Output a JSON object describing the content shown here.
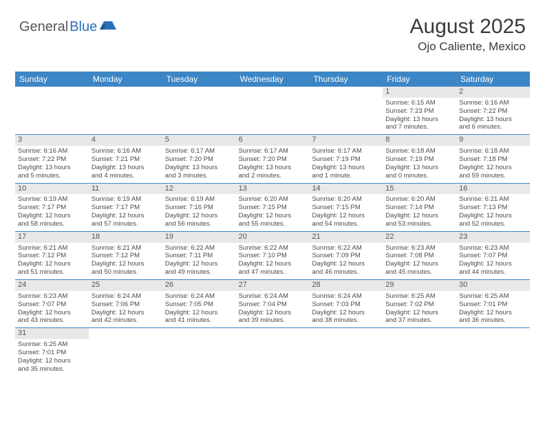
{
  "brand": {
    "first": "General",
    "second": "Blue",
    "accent_color": "#2970b8"
  },
  "title": {
    "month": "August 2025",
    "location": "Ojo Caliente, Mexico",
    "font_size_month": 30,
    "font_size_location": 17
  },
  "colors": {
    "header_bg": "#3d86c6",
    "header_text": "#ffffff",
    "daynum_bg": "#e8e8e8",
    "row_border": "#3d86c6",
    "body_text": "#4a4a4a",
    "page_bg": "#ffffff"
  },
  "day_names": [
    "Sunday",
    "Monday",
    "Tuesday",
    "Wednesday",
    "Thursday",
    "Friday",
    "Saturday"
  ],
  "weeks": [
    [
      null,
      null,
      null,
      null,
      null,
      {
        "n": "1",
        "sr": "Sunrise: 6:15 AM",
        "ss": "Sunset: 7:23 PM",
        "d1": "Daylight: 13 hours",
        "d2": "and 7 minutes."
      },
      {
        "n": "2",
        "sr": "Sunrise: 6:16 AM",
        "ss": "Sunset: 7:22 PM",
        "d1": "Daylight: 13 hours",
        "d2": "and 6 minutes."
      }
    ],
    [
      {
        "n": "3",
        "sr": "Sunrise: 6:16 AM",
        "ss": "Sunset: 7:22 PM",
        "d1": "Daylight: 13 hours",
        "d2": "and 5 minutes."
      },
      {
        "n": "4",
        "sr": "Sunrise: 6:16 AM",
        "ss": "Sunset: 7:21 PM",
        "d1": "Daylight: 13 hours",
        "d2": "and 4 minutes."
      },
      {
        "n": "5",
        "sr": "Sunrise: 6:17 AM",
        "ss": "Sunset: 7:20 PM",
        "d1": "Daylight: 13 hours",
        "d2": "and 3 minutes."
      },
      {
        "n": "6",
        "sr": "Sunrise: 6:17 AM",
        "ss": "Sunset: 7:20 PM",
        "d1": "Daylight: 13 hours",
        "d2": "and 2 minutes."
      },
      {
        "n": "7",
        "sr": "Sunrise: 6:17 AM",
        "ss": "Sunset: 7:19 PM",
        "d1": "Daylight: 13 hours",
        "d2": "and 1 minute."
      },
      {
        "n": "8",
        "sr": "Sunrise: 6:18 AM",
        "ss": "Sunset: 7:19 PM",
        "d1": "Daylight: 13 hours",
        "d2": "and 0 minutes."
      },
      {
        "n": "9",
        "sr": "Sunrise: 6:18 AM",
        "ss": "Sunset: 7:18 PM",
        "d1": "Daylight: 12 hours",
        "d2": "and 59 minutes."
      }
    ],
    [
      {
        "n": "10",
        "sr": "Sunrise: 6:19 AM",
        "ss": "Sunset: 7:17 PM",
        "d1": "Daylight: 12 hours",
        "d2": "and 58 minutes."
      },
      {
        "n": "11",
        "sr": "Sunrise: 6:19 AM",
        "ss": "Sunset: 7:17 PM",
        "d1": "Daylight: 12 hours",
        "d2": "and 57 minutes."
      },
      {
        "n": "12",
        "sr": "Sunrise: 6:19 AM",
        "ss": "Sunset: 7:16 PM",
        "d1": "Daylight: 12 hours",
        "d2": "and 56 minutes."
      },
      {
        "n": "13",
        "sr": "Sunrise: 6:20 AM",
        "ss": "Sunset: 7:15 PM",
        "d1": "Daylight: 12 hours",
        "d2": "and 55 minutes."
      },
      {
        "n": "14",
        "sr": "Sunrise: 6:20 AM",
        "ss": "Sunset: 7:15 PM",
        "d1": "Daylight: 12 hours",
        "d2": "and 54 minutes."
      },
      {
        "n": "15",
        "sr": "Sunrise: 6:20 AM",
        "ss": "Sunset: 7:14 PM",
        "d1": "Daylight: 12 hours",
        "d2": "and 53 minutes."
      },
      {
        "n": "16",
        "sr": "Sunrise: 6:21 AM",
        "ss": "Sunset: 7:13 PM",
        "d1": "Daylight: 12 hours",
        "d2": "and 52 minutes."
      }
    ],
    [
      {
        "n": "17",
        "sr": "Sunrise: 6:21 AM",
        "ss": "Sunset: 7:12 PM",
        "d1": "Daylight: 12 hours",
        "d2": "and 51 minutes."
      },
      {
        "n": "18",
        "sr": "Sunrise: 6:21 AM",
        "ss": "Sunset: 7:12 PM",
        "d1": "Daylight: 12 hours",
        "d2": "and 50 minutes."
      },
      {
        "n": "19",
        "sr": "Sunrise: 6:22 AM",
        "ss": "Sunset: 7:11 PM",
        "d1": "Daylight: 12 hours",
        "d2": "and 49 minutes."
      },
      {
        "n": "20",
        "sr": "Sunrise: 6:22 AM",
        "ss": "Sunset: 7:10 PM",
        "d1": "Daylight: 12 hours",
        "d2": "and 47 minutes."
      },
      {
        "n": "21",
        "sr": "Sunrise: 6:22 AM",
        "ss": "Sunset: 7:09 PM",
        "d1": "Daylight: 12 hours",
        "d2": "and 46 minutes."
      },
      {
        "n": "22",
        "sr": "Sunrise: 6:23 AM",
        "ss": "Sunset: 7:08 PM",
        "d1": "Daylight: 12 hours",
        "d2": "and 45 minutes."
      },
      {
        "n": "23",
        "sr": "Sunrise: 6:23 AM",
        "ss": "Sunset: 7:07 PM",
        "d1": "Daylight: 12 hours",
        "d2": "and 44 minutes."
      }
    ],
    [
      {
        "n": "24",
        "sr": "Sunrise: 6:23 AM",
        "ss": "Sunset: 7:07 PM",
        "d1": "Daylight: 12 hours",
        "d2": "and 43 minutes."
      },
      {
        "n": "25",
        "sr": "Sunrise: 6:24 AM",
        "ss": "Sunset: 7:06 PM",
        "d1": "Daylight: 12 hours",
        "d2": "and 42 minutes."
      },
      {
        "n": "26",
        "sr": "Sunrise: 6:24 AM",
        "ss": "Sunset: 7:05 PM",
        "d1": "Daylight: 12 hours",
        "d2": "and 41 minutes."
      },
      {
        "n": "27",
        "sr": "Sunrise: 6:24 AM",
        "ss": "Sunset: 7:04 PM",
        "d1": "Daylight: 12 hours",
        "d2": "and 39 minutes."
      },
      {
        "n": "28",
        "sr": "Sunrise: 6:24 AM",
        "ss": "Sunset: 7:03 PM",
        "d1": "Daylight: 12 hours",
        "d2": "and 38 minutes."
      },
      {
        "n": "29",
        "sr": "Sunrise: 6:25 AM",
        "ss": "Sunset: 7:02 PM",
        "d1": "Daylight: 12 hours",
        "d2": "and 37 minutes."
      },
      {
        "n": "30",
        "sr": "Sunrise: 6:25 AM",
        "ss": "Sunset: 7:01 PM",
        "d1": "Daylight: 12 hours",
        "d2": "and 36 minutes."
      }
    ],
    [
      {
        "n": "31",
        "sr": "Sunrise: 6:25 AM",
        "ss": "Sunset: 7:01 PM",
        "d1": "Daylight: 12 hours",
        "d2": "and 35 minutes."
      },
      null,
      null,
      null,
      null,
      null,
      null
    ]
  ]
}
